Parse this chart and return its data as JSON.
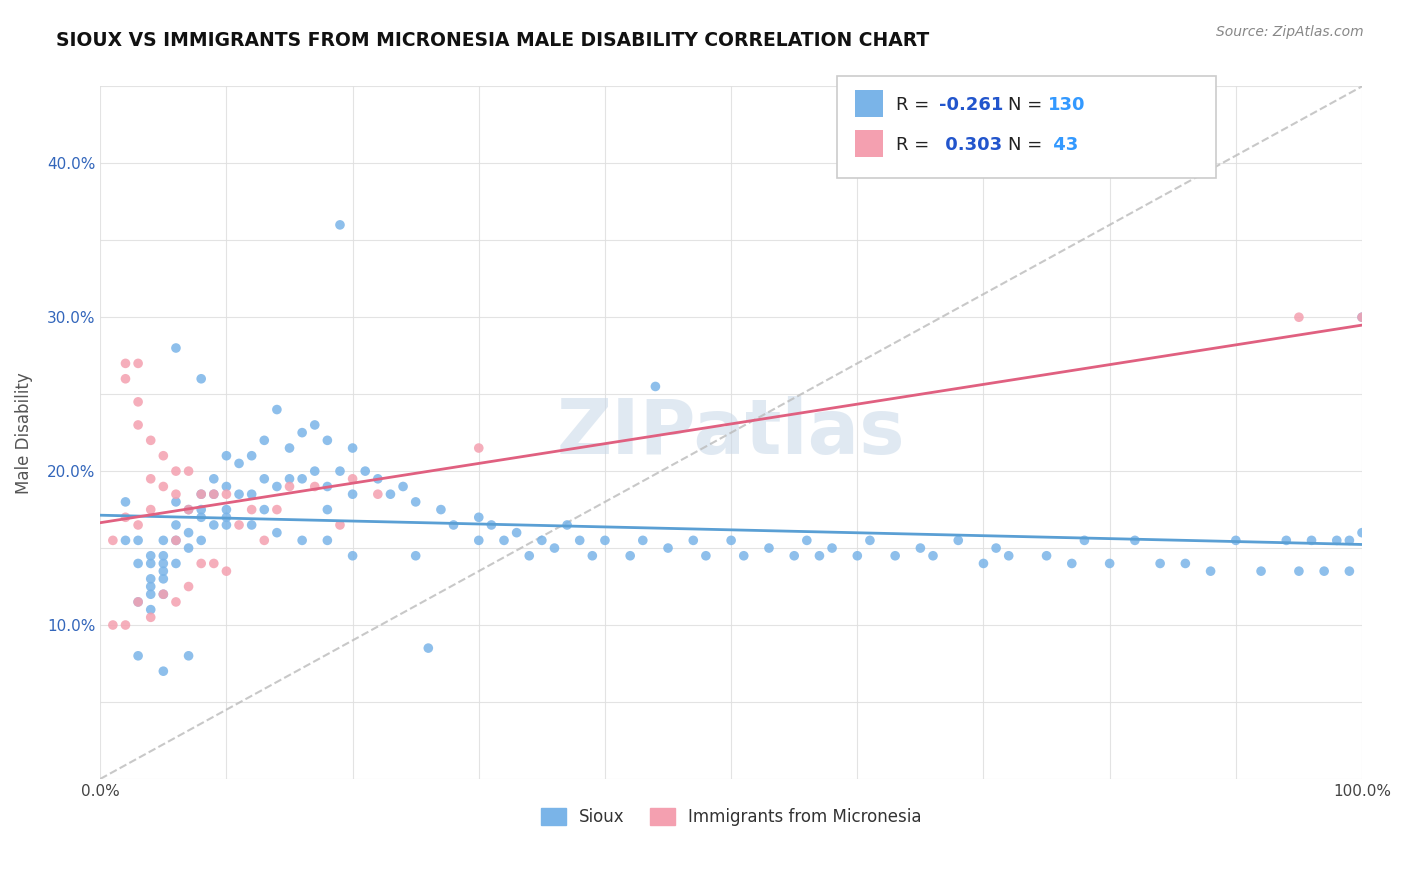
{
  "title": "SIOUX VS IMMIGRANTS FROM MICRONESIA MALE DISABILITY CORRELATION CHART",
  "source": "Source: ZipAtlas.com",
  "ylabel": "Male Disability",
  "xlim": [
    0,
    1.0
  ],
  "ylim": [
    0,
    0.45
  ],
  "color_sioux": "#7ab4e8",
  "color_micro": "#f4a0b0",
  "color_trend_sioux": "#5a9fd4",
  "color_trend_micro": "#e06080",
  "color_diag": "#bbbbbb",
  "r_color": "#2255cc",
  "n_color": "#3399ff",
  "sioux_x": [
    0.02,
    0.03,
    0.03,
    0.04,
    0.04,
    0.04,
    0.04,
    0.04,
    0.05,
    0.05,
    0.05,
    0.05,
    0.05,
    0.05,
    0.06,
    0.06,
    0.06,
    0.06,
    0.07,
    0.07,
    0.07,
    0.08,
    0.08,
    0.08,
    0.09,
    0.09,
    0.09,
    0.1,
    0.1,
    0.1,
    0.1,
    0.11,
    0.11,
    0.12,
    0.12,
    0.13,
    0.13,
    0.13,
    0.14,
    0.14,
    0.15,
    0.15,
    0.16,
    0.16,
    0.17,
    0.17,
    0.18,
    0.18,
    0.18,
    0.19,
    0.2,
    0.2,
    0.21,
    0.22,
    0.23,
    0.24,
    0.25,
    0.27,
    0.28,
    0.3,
    0.3,
    0.31,
    0.32,
    0.33,
    0.34,
    0.35,
    0.36,
    0.38,
    0.39,
    0.4,
    0.42,
    0.43,
    0.45,
    0.47,
    0.48,
    0.5,
    0.51,
    0.53,
    0.55,
    0.56,
    0.57,
    0.58,
    0.6,
    0.61,
    0.63,
    0.65,
    0.66,
    0.68,
    0.7,
    0.71,
    0.72,
    0.75,
    0.77,
    0.78,
    0.8,
    0.82,
    0.84,
    0.86,
    0.88,
    0.9,
    0.92,
    0.94,
    0.95,
    0.96,
    0.97,
    0.98,
    0.99,
    0.99,
    1.0,
    1.0,
    0.37,
    0.44,
    0.26,
    0.19,
    0.08,
    0.06,
    0.07,
    0.05,
    0.04,
    0.03,
    0.03,
    0.02,
    0.08,
    0.1,
    0.12,
    0.14,
    0.16,
    0.18,
    0.2,
    0.25
  ],
  "sioux_y": [
    0.155,
    0.155,
    0.14,
    0.14,
    0.145,
    0.13,
    0.125,
    0.12,
    0.155,
    0.145,
    0.14,
    0.135,
    0.13,
    0.12,
    0.18,
    0.165,
    0.155,
    0.14,
    0.175,
    0.16,
    0.15,
    0.185,
    0.17,
    0.155,
    0.195,
    0.185,
    0.165,
    0.21,
    0.19,
    0.175,
    0.165,
    0.205,
    0.185,
    0.21,
    0.185,
    0.22,
    0.195,
    0.175,
    0.24,
    0.19,
    0.215,
    0.195,
    0.225,
    0.195,
    0.23,
    0.2,
    0.22,
    0.19,
    0.175,
    0.2,
    0.215,
    0.185,
    0.2,
    0.195,
    0.185,
    0.19,
    0.18,
    0.175,
    0.165,
    0.17,
    0.155,
    0.165,
    0.155,
    0.16,
    0.145,
    0.155,
    0.15,
    0.155,
    0.145,
    0.155,
    0.145,
    0.155,
    0.15,
    0.155,
    0.145,
    0.155,
    0.145,
    0.15,
    0.145,
    0.155,
    0.145,
    0.15,
    0.145,
    0.155,
    0.145,
    0.15,
    0.145,
    0.155,
    0.14,
    0.15,
    0.145,
    0.145,
    0.14,
    0.155,
    0.14,
    0.155,
    0.14,
    0.14,
    0.135,
    0.155,
    0.135,
    0.155,
    0.135,
    0.155,
    0.135,
    0.155,
    0.135,
    0.155,
    0.16,
    0.3,
    0.165,
    0.255,
    0.085,
    0.36,
    0.26,
    0.28,
    0.08,
    0.07,
    0.11,
    0.115,
    0.08,
    0.18,
    0.175,
    0.17,
    0.165,
    0.16,
    0.155,
    0.155,
    0.145,
    0.145
  ],
  "micro_x": [
    0.01,
    0.01,
    0.02,
    0.02,
    0.02,
    0.02,
    0.03,
    0.03,
    0.03,
    0.03,
    0.03,
    0.04,
    0.04,
    0.04,
    0.04,
    0.05,
    0.05,
    0.05,
    0.06,
    0.06,
    0.06,
    0.06,
    0.07,
    0.07,
    0.07,
    0.08,
    0.08,
    0.09,
    0.09,
    0.1,
    0.1,
    0.11,
    0.12,
    0.13,
    0.14,
    0.15,
    0.17,
    0.19,
    0.2,
    0.22,
    0.3,
    0.95,
    1.0
  ],
  "micro_y": [
    0.155,
    0.1,
    0.27,
    0.26,
    0.17,
    0.1,
    0.27,
    0.245,
    0.23,
    0.165,
    0.115,
    0.22,
    0.195,
    0.175,
    0.105,
    0.21,
    0.19,
    0.12,
    0.2,
    0.185,
    0.155,
    0.115,
    0.2,
    0.175,
    0.125,
    0.185,
    0.14,
    0.185,
    0.14,
    0.185,
    0.135,
    0.165,
    0.175,
    0.155,
    0.175,
    0.19,
    0.19,
    0.165,
    0.195,
    0.185,
    0.215,
    0.3,
    0.3
  ]
}
